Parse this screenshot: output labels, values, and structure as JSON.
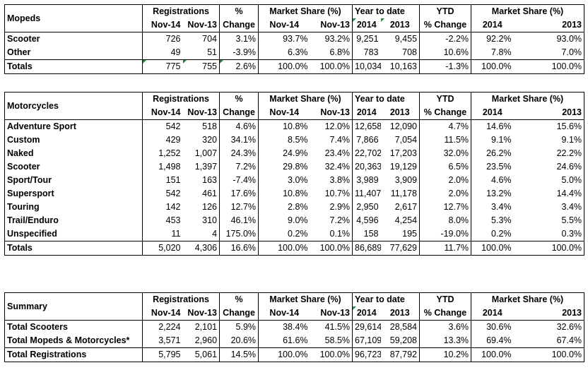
{
  "headers": {
    "registrations": "Registrations",
    "pct": "%",
    "change": "Change",
    "market_share": "Market Share (%)",
    "ytd_title": "Year to date",
    "ytd": "YTD",
    "pct_change": "% Change",
    "nov14": "Nov-14",
    "nov13": "Nov-13",
    "y2014": "2014",
    "y2013": "2013"
  },
  "mopeds": {
    "title": "Mopeds",
    "rows": [
      {
        "label": "Scooter",
        "v": [
          "726",
          "704",
          "3.1%",
          "93.7%",
          "93.2%",
          "9,251",
          "9,455",
          "-2.2%",
          "92.2%",
          "93.0%"
        ]
      },
      {
        "label": "Other",
        "v": [
          "49",
          "51",
          "-3.9%",
          "6.3%",
          "6.8%",
          "783",
          "708",
          "10.6%",
          "7.8%",
          "7.0%"
        ]
      }
    ],
    "total": {
      "label": "Totals",
      "v": [
        "775",
        "755",
        "2.6%",
        "100.0%",
        "100.0%",
        "10,034",
        "10,163",
        "-1.3%",
        "100.0%",
        "100.0%"
      ]
    }
  },
  "motorcycles": {
    "title": "Motorcycles",
    "rows": [
      {
        "label": "Adventure Sport",
        "v": [
          "542",
          "518",
          "4.6%",
          "10.8%",
          "12.0%",
          "12,658",
          "12,090",
          "4.7%",
          "14.6%",
          "15.6%"
        ]
      },
      {
        "label": "Custom",
        "v": [
          "429",
          "320",
          "34.1%",
          "8.5%",
          "7.4%",
          "7,866",
          "7,054",
          "11.5%",
          "9.1%",
          "9.1%"
        ]
      },
      {
        "label": "Naked",
        "v": [
          "1,252",
          "1,007",
          "24.3%",
          "24.9%",
          "23.4%",
          "22,702",
          "17,203",
          "32.0%",
          "26.2%",
          "22.2%"
        ]
      },
      {
        "label": "Scooter",
        "v": [
          "1,498",
          "1,397",
          "7.2%",
          "29.8%",
          "32.4%",
          "20,363",
          "19,129",
          "6.5%",
          "23.5%",
          "24.6%"
        ]
      },
      {
        "label": "Sport/Tour",
        "v": [
          "151",
          "163",
          "-7.4%",
          "3.0%",
          "3.8%",
          "3,989",
          "3,909",
          "2.0%",
          "4.6%",
          "5.0%"
        ]
      },
      {
        "label": "Supersport",
        "v": [
          "542",
          "461",
          "17.6%",
          "10.8%",
          "10.7%",
          "11,407",
          "11,178",
          "2.0%",
          "13.2%",
          "14.4%"
        ]
      },
      {
        "label": "Touring",
        "v": [
          "142",
          "126",
          "12.7%",
          "2.8%",
          "2.9%",
          "2,950",
          "2,617",
          "12.7%",
          "3.4%",
          "3.4%"
        ]
      },
      {
        "label": "Trail/Enduro",
        "v": [
          "453",
          "310",
          "46.1%",
          "9.0%",
          "7.2%",
          "4,596",
          "4,254",
          "8.0%",
          "5.3%",
          "5.5%"
        ]
      },
      {
        "label": "Unspecified",
        "v": [
          "11",
          "4",
          "175.0%",
          "0.2%",
          "0.1%",
          "158",
          "195",
          "-19.0%",
          "0.2%",
          "0.3%"
        ]
      }
    ],
    "total": {
      "label": "Totals",
      "v": [
        "5,020",
        "4,306",
        "16.6%",
        "100.0%",
        "100.0%",
        "86,689",
        "77,629",
        "11.7%",
        "100.0%",
        "100.0%"
      ]
    }
  },
  "summary": {
    "title": "Summary",
    "rows": [
      {
        "label": "Total Scooters",
        "v": [
          "2,224",
          "2,101",
          "5.9%",
          "38.4%",
          "41.5%",
          "29,614",
          "28,584",
          "3.6%",
          "30.6%",
          "32.6%"
        ]
      },
      {
        "label": "Total Mopeds & Motorcycles*",
        "v": [
          "3,571",
          "2,960",
          "20.6%",
          "61.6%",
          "58.5%",
          "67,109",
          "59,208",
          "13.3%",
          "69.4%",
          "67.4%"
        ]
      }
    ],
    "total": {
      "label": "Total Registrations",
      "v": [
        "5,795",
        "5,061",
        "14.5%",
        "100.0%",
        "100.0%",
        "96,723",
        "87,792",
        "10.2%",
        "100.0%",
        "100.0%"
      ]
    }
  },
  "colors": {
    "marker": "#1e8a3c",
    "border": "#000000"
  }
}
